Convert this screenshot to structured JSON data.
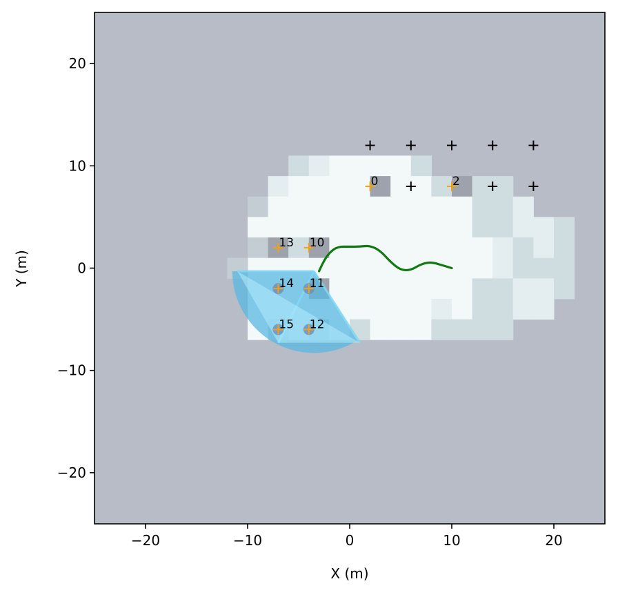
{
  "chart_data": {
    "type": "scatter",
    "xlabel": "X (m)",
    "ylabel": "Y (m)",
    "xlim": [
      -25,
      25
    ],
    "ylim": [
      -25,
      25
    ],
    "xticks": [
      -20,
      -10,
      0,
      10,
      20
    ],
    "yticks": [
      -20,
      -10,
      0,
      10,
      20
    ],
    "xtick_labels": [
      "−20",
      "−10",
      "0",
      "10",
      "20"
    ],
    "ytick_labels": [
      "−20",
      "−10",
      "0",
      "10",
      "20"
    ],
    "grid": false,
    "colors": {
      "unknown": "#b8bcc7",
      "explored": "#f3f8f9",
      "partial": "#d0dde0",
      "light": "#e4eef0",
      "edge": "#c4cdd4",
      "occupied": "#9ea2ad",
      "fov": "#5ab8e0",
      "trajectory": "#107a10",
      "target_found": "#f5a010",
      "target_unknown": "#000000",
      "detection": "#6a8fbf"
    },
    "cell_size": 2,
    "cells": [
      {
        "x": -9,
        "y": 6,
        "c": "edge"
      },
      {
        "x": -9,
        "y": 4,
        "c": "explored"
      },
      {
        "x": -9,
        "y": 2,
        "c": "edge"
      },
      {
        "x": -9,
        "y": 0,
        "c": "explored"
      },
      {
        "x": -11,
        "y": 0,
        "c": "edge"
      },
      {
        "x": -7,
        "y": 8,
        "c": "light"
      },
      {
        "x": -7,
        "y": 6,
        "c": "explored"
      },
      {
        "x": -7,
        "y": 4,
        "c": "explored"
      },
      {
        "x": -7,
        "y": 2,
        "c": "occupied"
      },
      {
        "x": -7,
        "y": 0,
        "c": "explored"
      },
      {
        "x": -5,
        "y": 10,
        "c": "partial"
      },
      {
        "x": -5,
        "y": 8,
        "c": "explored"
      },
      {
        "x": -5,
        "y": 6,
        "c": "explored"
      },
      {
        "x": -5,
        "y": 4,
        "c": "explored"
      },
      {
        "x": -5,
        "y": 2,
        "c": "partial"
      },
      {
        "x": -5,
        "y": 0,
        "c": "explored"
      },
      {
        "x": -3,
        "y": 10,
        "c": "light"
      },
      {
        "x": -3,
        "y": 8,
        "c": "explored"
      },
      {
        "x": -3,
        "y": 6,
        "c": "explored"
      },
      {
        "x": -3,
        "y": 4,
        "c": "explored"
      },
      {
        "x": -3,
        "y": 2,
        "c": "occupied"
      },
      {
        "x": -3,
        "y": 0,
        "c": "explored"
      },
      {
        "x": -1,
        "y": 10,
        "c": "explored"
      },
      {
        "x": -1,
        "y": 8,
        "c": "explored"
      },
      {
        "x": -1,
        "y": 6,
        "c": "explored"
      },
      {
        "x": -1,
        "y": 4,
        "c": "explored"
      },
      {
        "x": -1,
        "y": 2,
        "c": "explored"
      },
      {
        "x": -1,
        "y": 0,
        "c": "explored"
      },
      {
        "x": 1,
        "y": 10,
        "c": "explored"
      },
      {
        "x": 1,
        "y": 8,
        "c": "explored"
      },
      {
        "x": 1,
        "y": 6,
        "c": "explored"
      },
      {
        "x": 1,
        "y": 4,
        "c": "explored"
      },
      {
        "x": 1,
        "y": 2,
        "c": "explored"
      },
      {
        "x": 1,
        "y": 0,
        "c": "explored"
      },
      {
        "x": 3,
        "y": 10,
        "c": "explored"
      },
      {
        "x": 3,
        "y": 8,
        "c": "occupied"
      },
      {
        "x": 3,
        "y": 6,
        "c": "explored"
      },
      {
        "x": 3,
        "y": 4,
        "c": "explored"
      },
      {
        "x": 3,
        "y": 2,
        "c": "explored"
      },
      {
        "x": 3,
        "y": 0,
        "c": "explored"
      },
      {
        "x": 5,
        "y": 10,
        "c": "explored"
      },
      {
        "x": 5,
        "y": 8,
        "c": "explored"
      },
      {
        "x": 5,
        "y": 6,
        "c": "explored"
      },
      {
        "x": 5,
        "y": 4,
        "c": "explored"
      },
      {
        "x": 5,
        "y": 2,
        "c": "explored"
      },
      {
        "x": 5,
        "y": 0,
        "c": "explored"
      },
      {
        "x": 7,
        "y": 10,
        "c": "partial"
      },
      {
        "x": 7,
        "y": 8,
        "c": "explored"
      },
      {
        "x": 7,
        "y": 6,
        "c": "explored"
      },
      {
        "x": 7,
        "y": 4,
        "c": "explored"
      },
      {
        "x": 7,
        "y": 2,
        "c": "explored"
      },
      {
        "x": 7,
        "y": 0,
        "c": "explored"
      },
      {
        "x": 9,
        "y": 8,
        "c": "partial"
      },
      {
        "x": 9,
        "y": 6,
        "c": "explored"
      },
      {
        "x": 9,
        "y": 4,
        "c": "explored"
      },
      {
        "x": 9,
        "y": 2,
        "c": "explored"
      },
      {
        "x": 9,
        "y": 0,
        "c": "explored"
      },
      {
        "x": 11,
        "y": 8,
        "c": "occupied"
      },
      {
        "x": 11,
        "y": 6,
        "c": "explored"
      },
      {
        "x": 11,
        "y": 4,
        "c": "explored"
      },
      {
        "x": 11,
        "y": 2,
        "c": "explored"
      },
      {
        "x": 11,
        "y": 0,
        "c": "explored"
      },
      {
        "x": 13,
        "y": 8,
        "c": "partial"
      },
      {
        "x": 13,
        "y": 6,
        "c": "partial"
      },
      {
        "x": 13,
        "y": 4,
        "c": "partial"
      },
      {
        "x": 13,
        "y": 2,
        "c": "explored"
      },
      {
        "x": 13,
        "y": 0,
        "c": "explored"
      },
      {
        "x": 15,
        "y": 8,
        "c": "partial"
      },
      {
        "x": 15,
        "y": 6,
        "c": "partial"
      },
      {
        "x": 15,
        "y": 4,
        "c": "partial"
      },
      {
        "x": 15,
        "y": 2,
        "c": "light"
      },
      {
        "x": 15,
        "y": 0,
        "c": "light"
      },
      {
        "x": 17,
        "y": 6,
        "c": "light"
      },
      {
        "x": 17,
        "y": 4,
        "c": "light"
      },
      {
        "x": 17,
        "y": 2,
        "c": "partial"
      },
      {
        "x": 17,
        "y": 0,
        "c": "partial"
      },
      {
        "x": 19,
        "y": 4,
        "c": "light"
      },
      {
        "x": 19,
        "y": 2,
        "c": "light"
      },
      {
        "x": 19,
        "y": 0,
        "c": "partial"
      },
      {
        "x": 21,
        "y": 4,
        "c": "partial"
      },
      {
        "x": 21,
        "y": 2,
        "c": "partial"
      },
      {
        "x": 21,
        "y": 0,
        "c": "partial"
      },
      {
        "x": -9,
        "y": -2,
        "c": "explored"
      },
      {
        "x": -7,
        "y": -2,
        "c": "explored"
      },
      {
        "x": -5,
        "y": -2,
        "c": "explored"
      },
      {
        "x": -3,
        "y": -2,
        "c": "occupied"
      },
      {
        "x": -1,
        "y": -2,
        "c": "explored"
      },
      {
        "x": 1,
        "y": -2,
        "c": "explored"
      },
      {
        "x": 3,
        "y": -2,
        "c": "explored"
      },
      {
        "x": 5,
        "y": -2,
        "c": "explored"
      },
      {
        "x": 7,
        "y": -2,
        "c": "explored"
      },
      {
        "x": 9,
        "y": -2,
        "c": "explored"
      },
      {
        "x": 11,
        "y": -2,
        "c": "explored"
      },
      {
        "x": 13,
        "y": -2,
        "c": "partial"
      },
      {
        "x": 15,
        "y": -2,
        "c": "partial"
      },
      {
        "x": 17,
        "y": -2,
        "c": "light"
      },
      {
        "x": 19,
        "y": -2,
        "c": "light"
      },
      {
        "x": 21,
        "y": -2,
        "c": "partial"
      },
      {
        "x": -9,
        "y": -4,
        "c": "explored"
      },
      {
        "x": -7,
        "y": -4,
        "c": "explored"
      },
      {
        "x": -5,
        "y": -4,
        "c": "explored"
      },
      {
        "x": -3,
        "y": -4,
        "c": "explored"
      },
      {
        "x": -1,
        "y": -4,
        "c": "explored"
      },
      {
        "x": 1,
        "y": -4,
        "c": "explored"
      },
      {
        "x": 3,
        "y": -4,
        "c": "explored"
      },
      {
        "x": 5,
        "y": -4,
        "c": "explored"
      },
      {
        "x": 7,
        "y": -4,
        "c": "explored"
      },
      {
        "x": 9,
        "y": -4,
        "c": "light"
      },
      {
        "x": 11,
        "y": -4,
        "c": "explored"
      },
      {
        "x": 13,
        "y": -4,
        "c": "partial"
      },
      {
        "x": 15,
        "y": -4,
        "c": "partial"
      },
      {
        "x": 17,
        "y": -4,
        "c": "light"
      },
      {
        "x": 19,
        "y": -4,
        "c": "light"
      },
      {
        "x": -9,
        "y": -6,
        "c": "explored"
      },
      {
        "x": -7,
        "y": -6,
        "c": "edge"
      },
      {
        "x": -5,
        "y": -6,
        "c": "explored"
      },
      {
        "x": -3,
        "y": -6,
        "c": "edge"
      },
      {
        "x": -1,
        "y": -6,
        "c": "explored"
      },
      {
        "x": 1,
        "y": -6,
        "c": "partial"
      },
      {
        "x": 3,
        "y": -6,
        "c": "explored"
      },
      {
        "x": 5,
        "y": -6,
        "c": "explored"
      },
      {
        "x": 7,
        "y": -6,
        "c": "explored"
      },
      {
        "x": 9,
        "y": -6,
        "c": "partial"
      },
      {
        "x": 11,
        "y": -6,
        "c": "partial"
      },
      {
        "x": 13,
        "y": -6,
        "c": "partial"
      },
      {
        "x": 15,
        "y": -6,
        "c": "partial"
      }
    ],
    "fov": {
      "apex": [
        -3.5,
        -0.3
      ],
      "radius": 8,
      "start_deg": 180,
      "end_deg": 302,
      "rays": [
        [
          -11,
          -0.3
        ],
        [
          -7,
          -7.3
        ],
        [
          1,
          -7.3
        ]
      ]
    },
    "trajectory": [
      [
        -3,
        -0.3
      ],
      [
        -2.6,
        0.6
      ],
      [
        -2,
        1.5
      ],
      [
        -1.2,
        2.1
      ],
      [
        0,
        2.1
      ],
      [
        1,
        2.1
      ],
      [
        2,
        2.2
      ],
      [
        3,
        1.7
      ],
      [
        4,
        0.6
      ],
      [
        5,
        -0.2
      ],
      [
        6,
        -0.2
      ],
      [
        7,
        0.4
      ],
      [
        8,
        0.6
      ],
      [
        9,
        0.3
      ],
      [
        10,
        0
      ]
    ],
    "targets_found": [
      {
        "id": "0",
        "x": 2,
        "y": 8
      },
      {
        "id": "2",
        "x": 10,
        "y": 8
      },
      {
        "id": "13",
        "x": -7,
        "y": 2
      },
      {
        "id": "10",
        "x": -4,
        "y": 2
      },
      {
        "id": "14",
        "x": -7,
        "y": -2
      },
      {
        "id": "11",
        "x": -4,
        "y": -2
      },
      {
        "id": "15",
        "x": -7,
        "y": -6
      },
      {
        "id": "12",
        "x": -4,
        "y": -6
      }
    ],
    "detections": [
      {
        "x": -7,
        "y": -2
      },
      {
        "x": -4,
        "y": -2
      },
      {
        "x": -7,
        "y": -6
      },
      {
        "x": -4,
        "y": -6
      }
    ],
    "targets_unknown": [
      {
        "x": 2,
        "y": 12
      },
      {
        "x": 6,
        "y": 12
      },
      {
        "x": 10,
        "y": 12
      },
      {
        "x": 14,
        "y": 12
      },
      {
        "x": 18,
        "y": 12
      },
      {
        "x": 6,
        "y": 8
      },
      {
        "x": 14,
        "y": 8
      },
      {
        "x": 18,
        "y": 8
      }
    ]
  }
}
